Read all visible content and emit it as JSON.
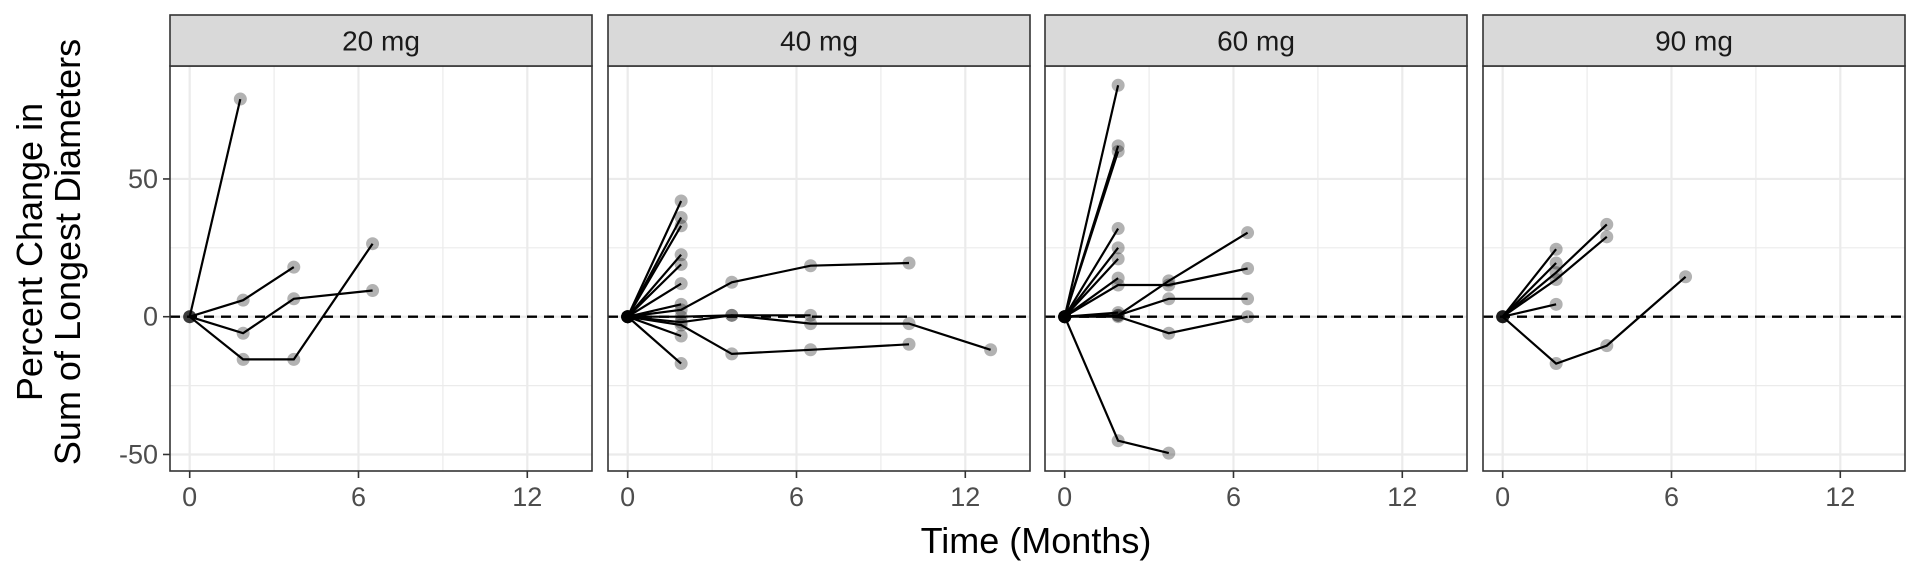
{
  "chart_data": {
    "type": "line",
    "facet_variable": "dose",
    "facets": [
      {
        "label": "20 mg",
        "subjects": [
          {
            "points": [
              {
                "x": 0,
                "y": 0
              },
              {
                "x": 1.8,
                "y": 79
              }
            ]
          },
          {
            "points": [
              {
                "x": 0,
                "y": 0
              },
              {
                "x": 1.9,
                "y": 6
              },
              {
                "x": 3.7,
                "y": 18
              }
            ]
          },
          {
            "points": [
              {
                "x": 0,
                "y": 0
              },
              {
                "x": 1.9,
                "y": -6
              },
              {
                "x": 3.7,
                "y": 6.5
              },
              {
                "x": 6.5,
                "y": 9.5
              }
            ]
          },
          {
            "points": [
              {
                "x": 0,
                "y": 0
              },
              {
                "x": 1.9,
                "y": -15.5
              },
              {
                "x": 3.7,
                "y": -15.5
              },
              {
                "x": 6.5,
                "y": 26.5
              }
            ]
          }
        ]
      },
      {
        "label": "40 mg",
        "subjects": [
          {
            "points": [
              {
                "x": 0,
                "y": 0
              },
              {
                "x": 1.9,
                "y": 42
              }
            ]
          },
          {
            "points": [
              {
                "x": 0,
                "y": 0
              },
              {
                "x": 1.9,
                "y": 36
              }
            ]
          },
          {
            "points": [
              {
                "x": 0,
                "y": 0
              },
              {
                "x": 1.9,
                "y": 33
              }
            ]
          },
          {
            "points": [
              {
                "x": 0,
                "y": 0
              },
              {
                "x": 1.9,
                "y": 22.5
              }
            ]
          },
          {
            "points": [
              {
                "x": 0,
                "y": 0
              },
              {
                "x": 1.9,
                "y": 19
              }
            ]
          },
          {
            "points": [
              {
                "x": 0,
                "y": 0
              },
              {
                "x": 1.9,
                "y": 12
              }
            ]
          },
          {
            "points": [
              {
                "x": 0,
                "y": 0
              },
              {
                "x": 1.9,
                "y": 4.5
              }
            ]
          },
          {
            "points": [
              {
                "x": 0,
                "y": 0
              },
              {
                "x": 1.9,
                "y": -7
              }
            ]
          },
          {
            "points": [
              {
                "x": 0,
                "y": 0
              },
              {
                "x": 1.9,
                "y": -17
              }
            ]
          },
          {
            "points": [
              {
                "x": 0,
                "y": 0
              },
              {
                "x": 1.9,
                "y": 2.5
              },
              {
                "x": 3.7,
                "y": 12.5
              },
              {
                "x": 6.5,
                "y": 18.5
              },
              {
                "x": 10,
                "y": 19.5
              }
            ]
          },
          {
            "points": [
              {
                "x": 0,
                "y": 0
              },
              {
                "x": 1.9,
                "y": 0
              },
              {
                "x": 3.7,
                "y": 0.5
              },
              {
                "x": 6.5,
                "y": 0.5
              }
            ]
          },
          {
            "points": [
              {
                "x": 0,
                "y": 0
              },
              {
                "x": 1.9,
                "y": -2
              },
              {
                "x": 3.7,
                "y": 0.5
              },
              {
                "x": 6.5,
                "y": -2.5
              },
              {
                "x": 10,
                "y": -2.5
              },
              {
                "x": 12.9,
                "y": -12
              }
            ]
          },
          {
            "points": [
              {
                "x": 0,
                "y": 0
              },
              {
                "x": 1.9,
                "y": -3
              },
              {
                "x": 3.7,
                "y": -13.5
              },
              {
                "x": 6.5,
                "y": -12
              },
              {
                "x": 10,
                "y": -10
              }
            ]
          }
        ]
      },
      {
        "label": "60 mg",
        "subjects": [
          {
            "points": [
              {
                "x": 0,
                "y": 0
              },
              {
                "x": 1.9,
                "y": 84
              }
            ]
          },
          {
            "points": [
              {
                "x": 0,
                "y": 0
              },
              {
                "x": 1.9,
                "y": 62
              }
            ]
          },
          {
            "points": [
              {
                "x": 0,
                "y": 0
              },
              {
                "x": 1.9,
                "y": 60
              }
            ]
          },
          {
            "points": [
              {
                "x": 0,
                "y": 0
              },
              {
                "x": 1.9,
                "y": 32
              }
            ]
          },
          {
            "points": [
              {
                "x": 0,
                "y": 0
              },
              {
                "x": 1.9,
                "y": 25
              }
            ]
          },
          {
            "points": [
              {
                "x": 0,
                "y": 0
              },
              {
                "x": 1.9,
                "y": 21
              }
            ]
          },
          {
            "points": [
              {
                "x": 0,
                "y": 0
              },
              {
                "x": 1.9,
                "y": 14
              }
            ]
          },
          {
            "points": [
              {
                "x": 0,
                "y": 0
              },
              {
                "x": 1.9,
                "y": 1.5
              }
            ]
          },
          {
            "points": [
              {
                "x": 0,
                "y": 0
              },
              {
                "x": 1.9,
                "y": 11.5
              },
              {
                "x": 3.7,
                "y": 11.5
              },
              {
                "x": 6.5,
                "y": 17.5
              }
            ]
          },
          {
            "points": [
              {
                "x": 0,
                "y": 0
              },
              {
                "x": 1.9,
                "y": 0.5
              },
              {
                "x": 3.7,
                "y": 13
              },
              {
                "x": 6.5,
                "y": 30.5
              }
            ]
          },
          {
            "points": [
              {
                "x": 0,
                "y": 0
              },
              {
                "x": 1.9,
                "y": 0.5
              },
              {
                "x": 3.7,
                "y": 6.5
              },
              {
                "x": 6.5,
                "y": 6.5
              }
            ]
          },
          {
            "points": [
              {
                "x": 0,
                "y": 0
              },
              {
                "x": 1.9,
                "y": 0
              },
              {
                "x": 3.7,
                "y": -6
              },
              {
                "x": 6.5,
                "y": 0
              }
            ]
          },
          {
            "points": [
              {
                "x": 0,
                "y": 0
              },
              {
                "x": 1.9,
                "y": -45
              },
              {
                "x": 3.7,
                "y": -49.5
              }
            ]
          }
        ]
      },
      {
        "label": "90 mg",
        "subjects": [
          {
            "points": [
              {
                "x": 0,
                "y": 0
              },
              {
                "x": 1.9,
                "y": 24.5
              }
            ]
          },
          {
            "points": [
              {
                "x": 0,
                "y": 0
              },
              {
                "x": 1.9,
                "y": 19.5
              }
            ]
          },
          {
            "points": [
              {
                "x": 0,
                "y": 0
              },
              {
                "x": 1.9,
                "y": 4.5
              }
            ]
          },
          {
            "points": [
              {
                "x": 0,
                "y": 0
              },
              {
                "x": 1.9,
                "y": 16
              },
              {
                "x": 3.7,
                "y": 33.5
              }
            ]
          },
          {
            "points": [
              {
                "x": 0,
                "y": 0
              },
              {
                "x": 1.9,
                "y": 13.5
              },
              {
                "x": 3.7,
                "y": 29
              }
            ]
          },
          {
            "points": [
              {
                "x": 0,
                "y": 0
              },
              {
                "x": 1.9,
                "y": -17
              },
              {
                "x": 3.7,
                "y": -10.5
              },
              {
                "x": 6.5,
                "y": 14.5
              }
            ]
          }
        ]
      }
    ],
    "xlabel": "Time (Months)",
    "ylabel_lines": [
      "Percent Change in",
      "Sum of Longest Diameters"
    ],
    "x_ticks": [
      0,
      6,
      12
    ],
    "y_ticks": [
      -50,
      0,
      50
    ],
    "xlim": [
      -0.7,
      14.3
    ],
    "ylim": [
      -56,
      91
    ],
    "reference_line": {
      "y": 0,
      "style": "dashed"
    },
    "grid": true,
    "colors": {
      "line": "#000000",
      "point": "#000000",
      "strip_fill": "#d9d9d9",
      "panel_border": "#333333",
      "grid": "#ebebeb"
    }
  }
}
